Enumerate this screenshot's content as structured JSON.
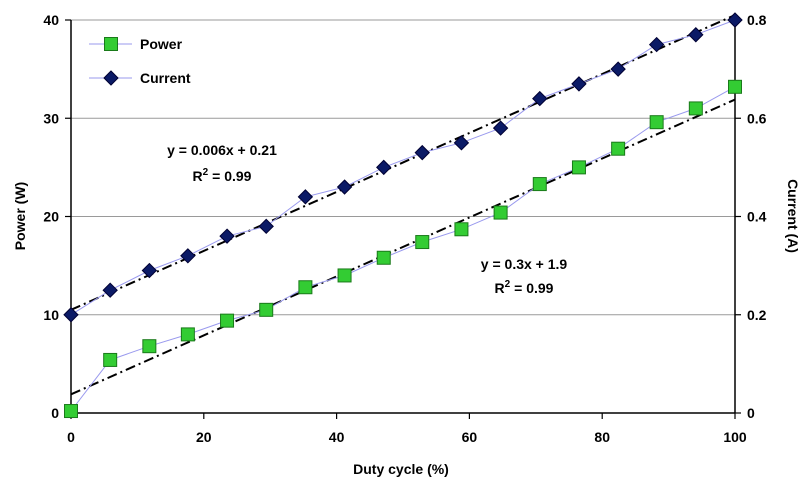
{
  "chart_data": {
    "type": "line",
    "xlabel": "Duty cycle (%)",
    "ylabel_left": "Power (W)",
    "ylabel_right": "Current (A)",
    "xlim": [
      0,
      100
    ],
    "ylim_left": [
      0,
      40
    ],
    "ylim_right": [
      0,
      0.8
    ],
    "x_ticks": [
      "0",
      "20",
      "40",
      "60",
      "80",
      "100"
    ],
    "y_left_ticks": [
      "0",
      "10",
      "20",
      "30",
      "40"
    ],
    "y_right_ticks": [
      "0",
      "0.2",
      "0.4",
      "0.6",
      "0.8"
    ],
    "grid": "horizontal",
    "legend_position": "top-left",
    "series": [
      {
        "name": "Power",
        "axis": "left",
        "marker": "square",
        "marker_color": "#33cc33",
        "x": [
          0,
          5.9,
          11.8,
          17.6,
          23.5,
          29.4,
          35.3,
          41.2,
          47.1,
          52.9,
          58.8,
          64.7,
          70.6,
          76.5,
          82.4,
          88.2,
          94.1,
          100
        ],
        "values": [
          0.2,
          5.4,
          6.8,
          8.0,
          9.4,
          10.5,
          12.8,
          14.0,
          15.8,
          17.4,
          18.7,
          20.4,
          23.3,
          25.0,
          26.9,
          29.6,
          31.0,
          33.2
        ]
      },
      {
        "name": "Current",
        "axis": "right",
        "marker": "diamond",
        "marker_color": "#0b1a66",
        "x": [
          0,
          5.9,
          11.8,
          17.6,
          23.5,
          29.4,
          35.3,
          41.2,
          47.1,
          52.9,
          58.8,
          64.7,
          70.6,
          76.5,
          82.4,
          88.2,
          94.1,
          100
        ],
        "values": [
          0.2,
          0.25,
          0.29,
          0.32,
          0.36,
          0.38,
          0.44,
          0.46,
          0.5,
          0.53,
          0.55,
          0.58,
          0.64,
          0.67,
          0.7,
          0.75,
          0.77,
          0.8
        ]
      }
    ],
    "trendlines": [
      {
        "series": "Power",
        "axis": "left",
        "slope": 0.3,
        "intercept": 1.9,
        "equation": "y = 0.3x + 1.9",
        "r2_prefix": "R",
        "r2_sup": "2",
        "r2_suffix": " = 0.99"
      },
      {
        "series": "Current",
        "axis": "right",
        "slope": 0.006,
        "intercept": 0.21,
        "equation": "y = 0.006x + 0.21",
        "r2_prefix": "R",
        "r2_sup": "2",
        "r2_suffix": " = 0.99"
      }
    ],
    "series_line_color": "#9999ee",
    "trendline_color": "#000000"
  }
}
